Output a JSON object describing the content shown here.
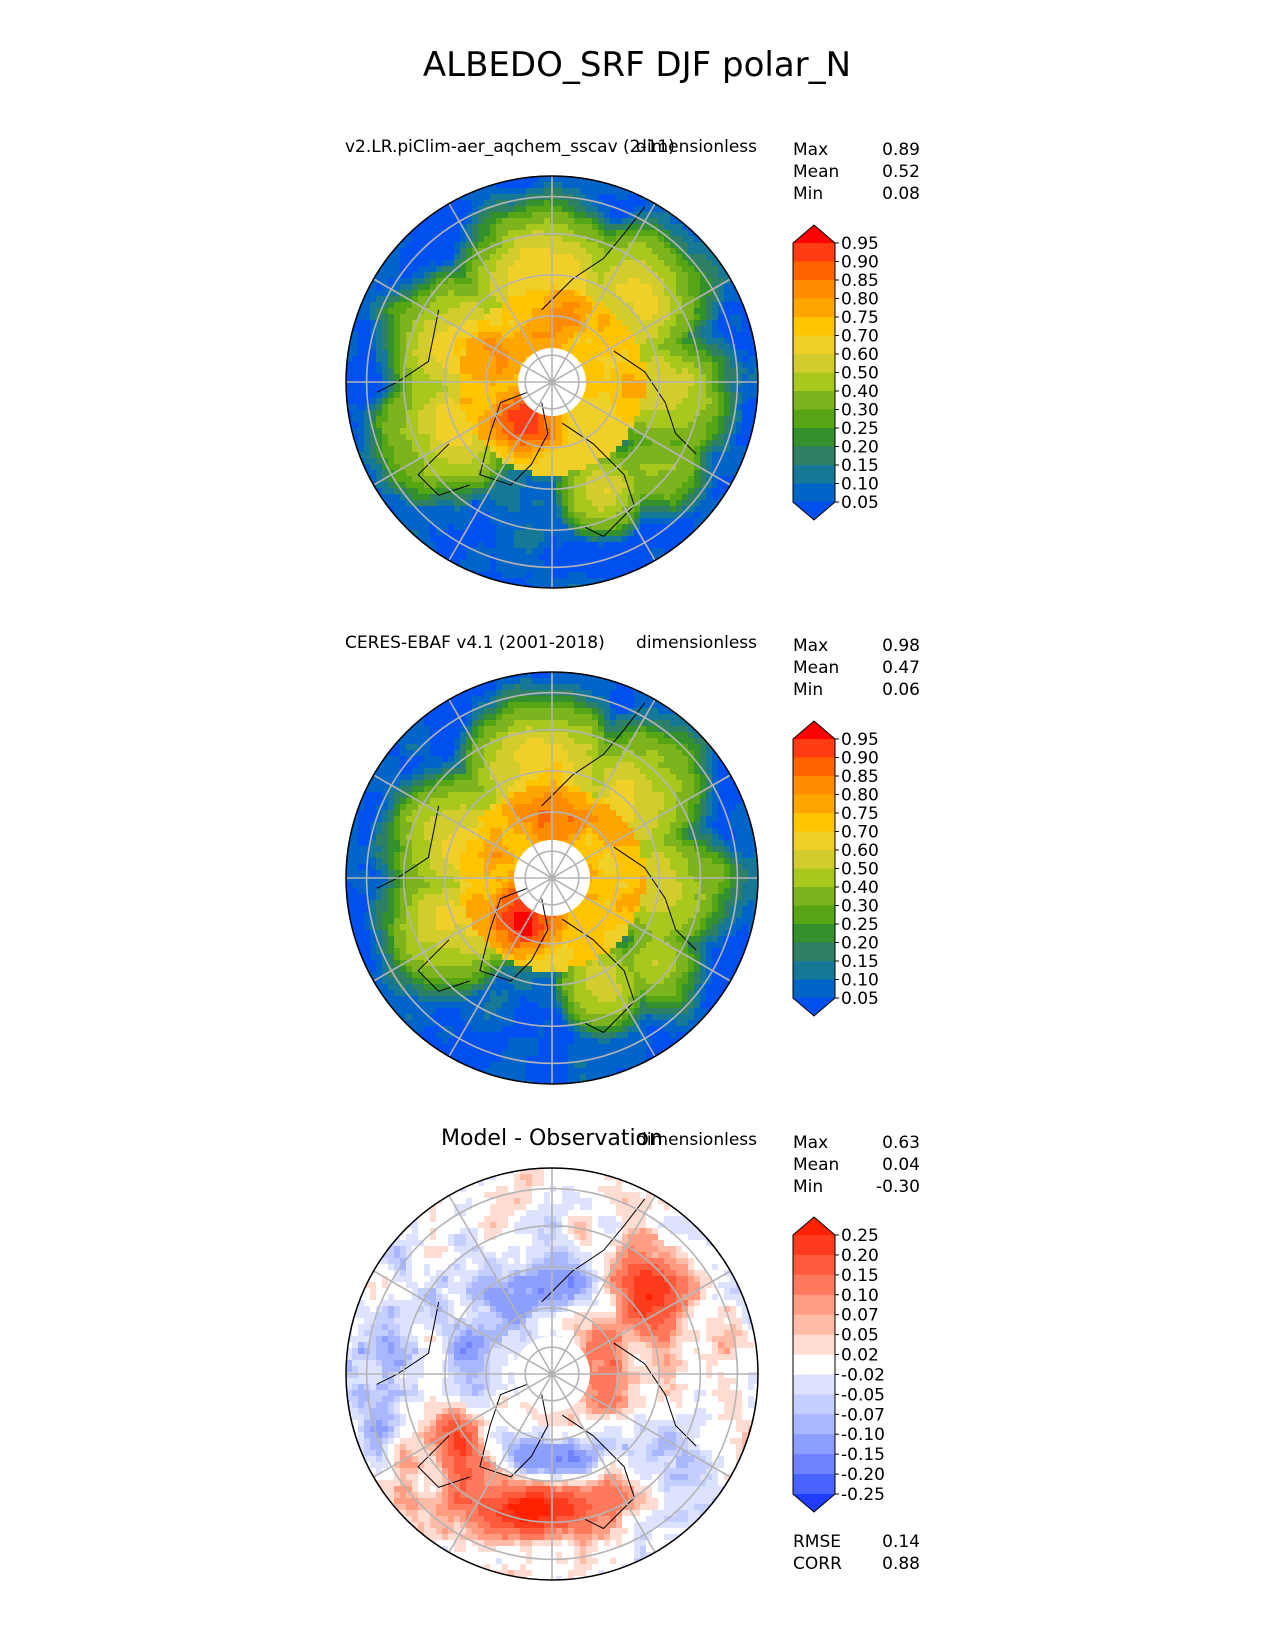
{
  "figure": {
    "title": "ALBEDO_SRF DJF polar_N"
  },
  "panels": [
    {
      "id": "test",
      "title_left": "v2.LR.piClim-aer_aqchem_sscav (2-11)",
      "title_right": "dimensionless",
      "stats": [
        {
          "label": "Max",
          "value": "0.89"
        },
        {
          "label": "Mean",
          "value": "0.52"
        },
        {
          "label": "Min",
          "value": "0.08"
        }
      ],
      "colorbar": {
        "ticks": [
          "0.95",
          "0.90",
          "0.85",
          "0.80",
          "0.75",
          "0.70",
          "0.60",
          "0.50",
          "0.40",
          "0.30",
          "0.25",
          "0.20",
          "0.15",
          "0.10",
          "0.05"
        ],
        "colors": [
          "#ff0000",
          "#ff3c14",
          "#ff6400",
          "#ff8c00",
          "#ffa500",
          "#ffc400",
          "#f0cf28",
          "#d2cd2d",
          "#a8c81e",
          "#7db41e",
          "#55a514",
          "#32912d",
          "#2d8064",
          "#147896",
          "#0064c8",
          "#0050f0"
        ]
      },
      "field": {
        "kind": "model"
      }
    },
    {
      "id": "reference",
      "title_left": "CERES-EBAF v4.1 (2001-2018)",
      "title_right": "dimensionless",
      "stats": [
        {
          "label": "Max",
          "value": "0.98"
        },
        {
          "label": "Mean",
          "value": "0.47"
        },
        {
          "label": "Min",
          "value": "0.06"
        }
      ],
      "colorbar": {
        "ticks": [
          "0.95",
          "0.90",
          "0.85",
          "0.80",
          "0.75",
          "0.70",
          "0.60",
          "0.50",
          "0.40",
          "0.30",
          "0.25",
          "0.20",
          "0.15",
          "0.10",
          "0.05"
        ],
        "colors": [
          "#ff0000",
          "#ff3c14",
          "#ff6400",
          "#ff8c00",
          "#ffa500",
          "#ffc400",
          "#f0cf28",
          "#d2cd2d",
          "#a8c81e",
          "#7db41e",
          "#55a514",
          "#32912d",
          "#2d8064",
          "#147896",
          "#0064c8",
          "#0050f0"
        ]
      },
      "field": {
        "kind": "obs"
      }
    },
    {
      "id": "diff",
      "title_center": "Model - Observation",
      "title_right": "dimensionless",
      "stats": [
        {
          "label": "Max",
          "value": "0.63"
        },
        {
          "label": "Mean",
          "value": "0.04"
        },
        {
          "label": "Min",
          "value": "-0.30"
        }
      ],
      "colorbar": {
        "ticks": [
          "0.25",
          "0.20",
          "0.15",
          "0.10",
          "0.07",
          "0.05",
          "0.02",
          "-0.02",
          "-0.05",
          "-0.07",
          "-0.10",
          "-0.15",
          "-0.20",
          "-0.25"
        ],
        "colors": [
          "#ff2200",
          "#ff3b1e",
          "#ff5a3c",
          "#ff7a5c",
          "#ff9c82",
          "#ffbba6",
          "#ffdcd2",
          "#ffffff",
          "#dde3ff",
          "#c4ceff",
          "#a8b7ff",
          "#8c9eff",
          "#6f82ff",
          "#4a62ff",
          "#1f3cff"
        ]
      },
      "field": {
        "kind": "diff"
      },
      "extra_stats": [
        {
          "label": "RMSE",
          "value": "0.14"
        },
        {
          "label": "CORR",
          "value": "0.88"
        }
      ]
    }
  ],
  "chart_data": [
    {
      "type": "heatmap",
      "title": "v2.LR.piClim-aer_aqchem_sscav (2-11)",
      "projection": "north polar stereographic",
      "units": "dimensionless",
      "stats": {
        "max": 0.89,
        "mean": 0.52,
        "min": 0.08
      },
      "colorbar_levels": [
        0.05,
        0.1,
        0.15,
        0.2,
        0.25,
        0.3,
        0.4,
        0.5,
        0.6,
        0.7,
        0.75,
        0.8,
        0.85,
        0.9,
        0.95
      ],
      "extend": "both"
    },
    {
      "type": "heatmap",
      "title": "CERES-EBAF v4.1 (2001-2018)",
      "projection": "north polar stereographic",
      "units": "dimensionless",
      "stats": {
        "max": 0.98,
        "mean": 0.47,
        "min": 0.06
      },
      "colorbar_levels": [
        0.05,
        0.1,
        0.15,
        0.2,
        0.25,
        0.3,
        0.4,
        0.5,
        0.6,
        0.7,
        0.75,
        0.8,
        0.85,
        0.9,
        0.95
      ],
      "extend": "both"
    },
    {
      "type": "heatmap",
      "title": "Model - Observation",
      "projection": "north polar stereographic",
      "units": "dimensionless",
      "stats": {
        "max": 0.63,
        "mean": 0.04,
        "min": -0.3,
        "rmse": 0.14,
        "corr": 0.88
      },
      "colorbar_levels": [
        -0.25,
        -0.2,
        -0.15,
        -0.1,
        -0.07,
        -0.05,
        -0.02,
        0.02,
        0.05,
        0.07,
        0.1,
        0.15,
        0.2,
        0.25
      ],
      "extend": "both"
    }
  ]
}
